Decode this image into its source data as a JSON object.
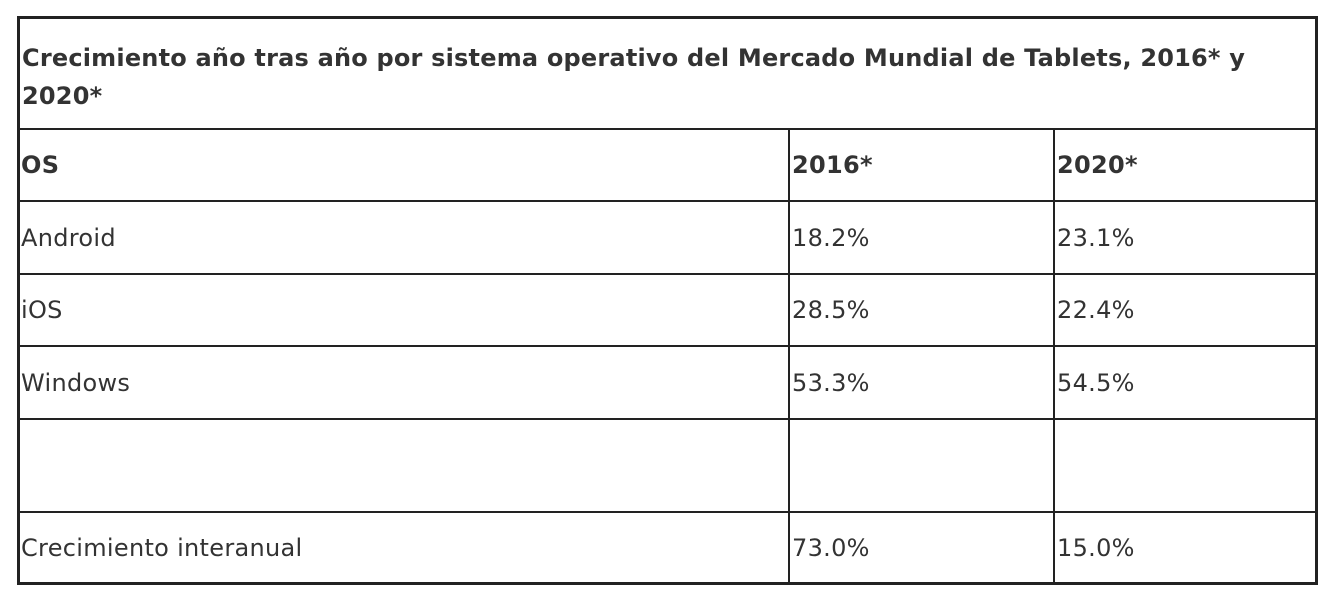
{
  "chart_data": {
    "type": "table",
    "title": "Crecimiento año tras año por sistema operativo del Mercado Mundial de Tablets, 2016* y 2020*",
    "columns": [
      "OS",
      "2016*",
      "2020*"
    ],
    "rows": [
      [
        "Android",
        "18.2%",
        "23.1%"
      ],
      [
        "iOS",
        "28.5%",
        "22.4%"
      ],
      [
        "Windows",
        "53.3%",
        "54.5%"
      ],
      [
        "",
        "",
        ""
      ],
      [
        "Crecimiento interanual",
        "73.0%",
        "15.0%"
      ]
    ]
  }
}
